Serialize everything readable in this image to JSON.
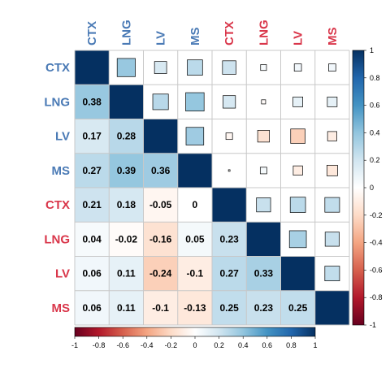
{
  "chart_data": {
    "type": "heatmap",
    "title": "",
    "variables": [
      "CTX",
      "LNG",
      "LV",
      "MS",
      "CTX",
      "LNG",
      "LV",
      "MS"
    ],
    "label_colors": [
      "#4a7ab5",
      "#4a7ab5",
      "#4a7ab5",
      "#4a7ab5",
      "#d9364a",
      "#d9364a",
      "#d9364a",
      "#d9364a"
    ],
    "matrix": [
      [
        1,
        0.38,
        0.17,
        0.27,
        0.21,
        0.04,
        0.06,
        0.06
      ],
      [
        0.38,
        1,
        0.28,
        0.39,
        0.18,
        -0.02,
        0.11,
        0.11
      ],
      [
        0.17,
        0.28,
        1,
        0.36,
        -0.05,
        -0.16,
        -0.24,
        -0.1
      ],
      [
        0.27,
        0.39,
        0.36,
        1,
        0,
        0.05,
        -0.1,
        -0.13
      ],
      [
        0.21,
        0.18,
        -0.05,
        0,
        1,
        0.23,
        0.27,
        0.25
      ],
      [
        0.04,
        -0.02,
        -0.16,
        0.05,
        0.23,
        1,
        0.33,
        0.23
      ],
      [
        0.06,
        0.11,
        -0.24,
        -0.1,
        0.27,
        0.33,
        1,
        0.25
      ],
      [
        0.06,
        0.11,
        -0.1,
        -0.13,
        0.25,
        0.23,
        0.25,
        1
      ]
    ],
    "lower_display": "number",
    "upper_display": "square",
    "value_range": [
      -1,
      1
    ],
    "right_colorbar_ticks": [
      "1",
      "0.8",
      "0.6",
      "0.4",
      "0.2",
      "0",
      "-0.2",
      "-0.4",
      "-0.6",
      "-0.8",
      "-1"
    ],
    "bottom_colorbar_ticks": [
      "-1",
      "-0.8",
      "-0.6",
      "-0.4",
      "-0.2",
      "0",
      "0.2",
      "0.4",
      "0.6",
      "0.8",
      "1"
    ],
    "colorscale": [
      "#67001f",
      "#b2182b",
      "#d6604d",
      "#f4a582",
      "#fddbc7",
      "#ffffff",
      "#d1e5f0",
      "#92c5de",
      "#4393c3",
      "#2166ac",
      "#053061"
    ]
  }
}
